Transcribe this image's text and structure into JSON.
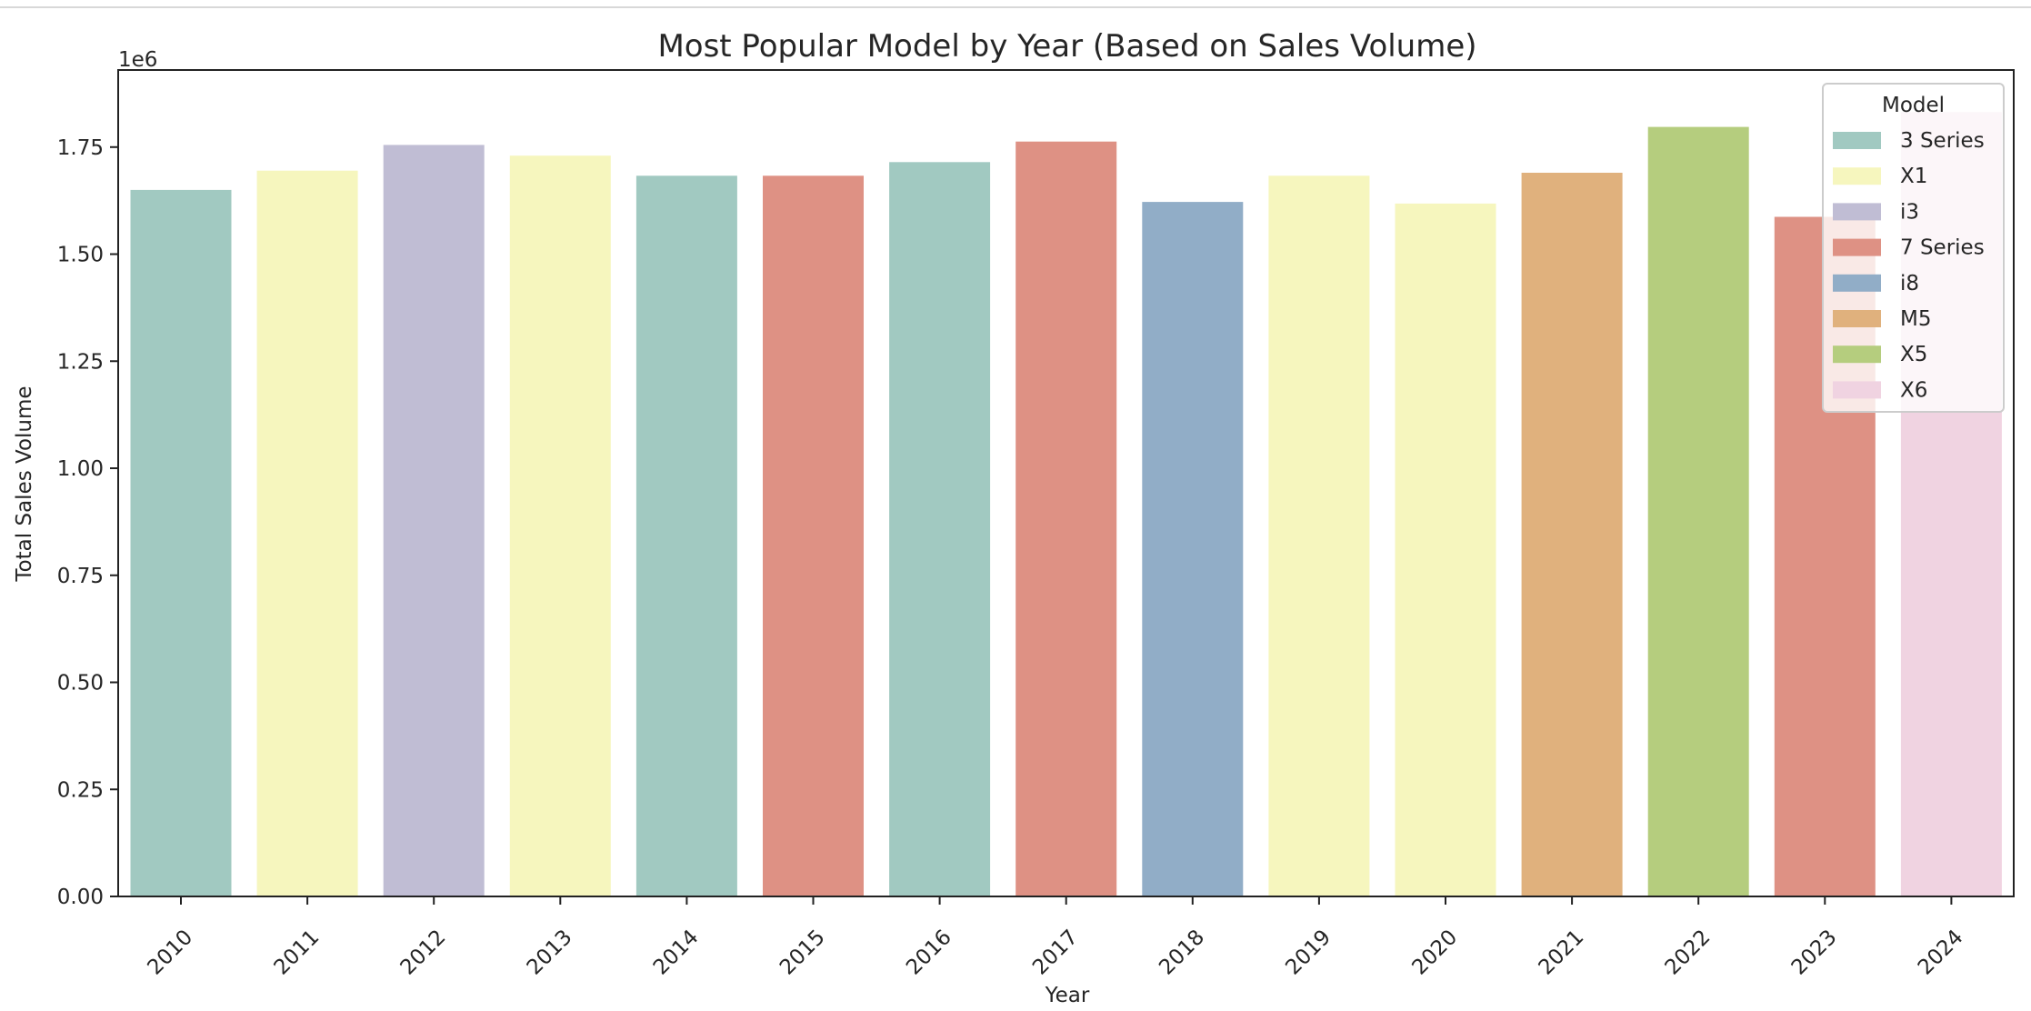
{
  "chart_data": {
    "type": "bar",
    "title": "Most Popular Model by Year (Based on Sales Volume)",
    "xlabel": "Year",
    "ylabel": "Total Sales Volume",
    "y_offset_label": "1e6",
    "ylim": [
      0,
      1.93
    ],
    "y_ticks": [
      "0.00",
      "0.25",
      "0.50",
      "0.75",
      "1.00",
      "1.25",
      "1.50",
      "1.75"
    ],
    "categories": [
      "2010",
      "2011",
      "2012",
      "2013",
      "2014",
      "2015",
      "2016",
      "2017",
      "2018",
      "2019",
      "2020",
      "2021",
      "2022",
      "2023",
      "2024"
    ],
    "values": [
      1.65,
      1.695,
      1.755,
      1.73,
      1.683,
      1.683,
      1.715,
      1.763,
      1.622,
      1.683,
      1.618,
      1.69,
      1.797,
      1.587,
      1.832
    ],
    "models": [
      "3 Series",
      "X1",
      "i3",
      "X1",
      "3 Series",
      "7 Series",
      "3 Series",
      "7 Series",
      "i8",
      "X1",
      "X1",
      "M5",
      "X5",
      "7 Series",
      "X6"
    ],
    "legend": {
      "title": "Model",
      "position": "top-right",
      "entries": [
        {
          "label": "3 Series",
          "color": "#a1c9c1"
        },
        {
          "label": "X1",
          "color": "#f6f6be"
        },
        {
          "label": "i3",
          "color": "#c0bdd4"
        },
        {
          "label": "7 Series",
          "color": "#de9184"
        },
        {
          "label": "i8",
          "color": "#91adc7"
        },
        {
          "label": "M5",
          "color": "#e0b17d"
        },
        {
          "label": "X5",
          "color": "#b5cd7e"
        },
        {
          "label": "X6",
          "color": "#f0d3e1"
        }
      ]
    },
    "grid": false
  }
}
